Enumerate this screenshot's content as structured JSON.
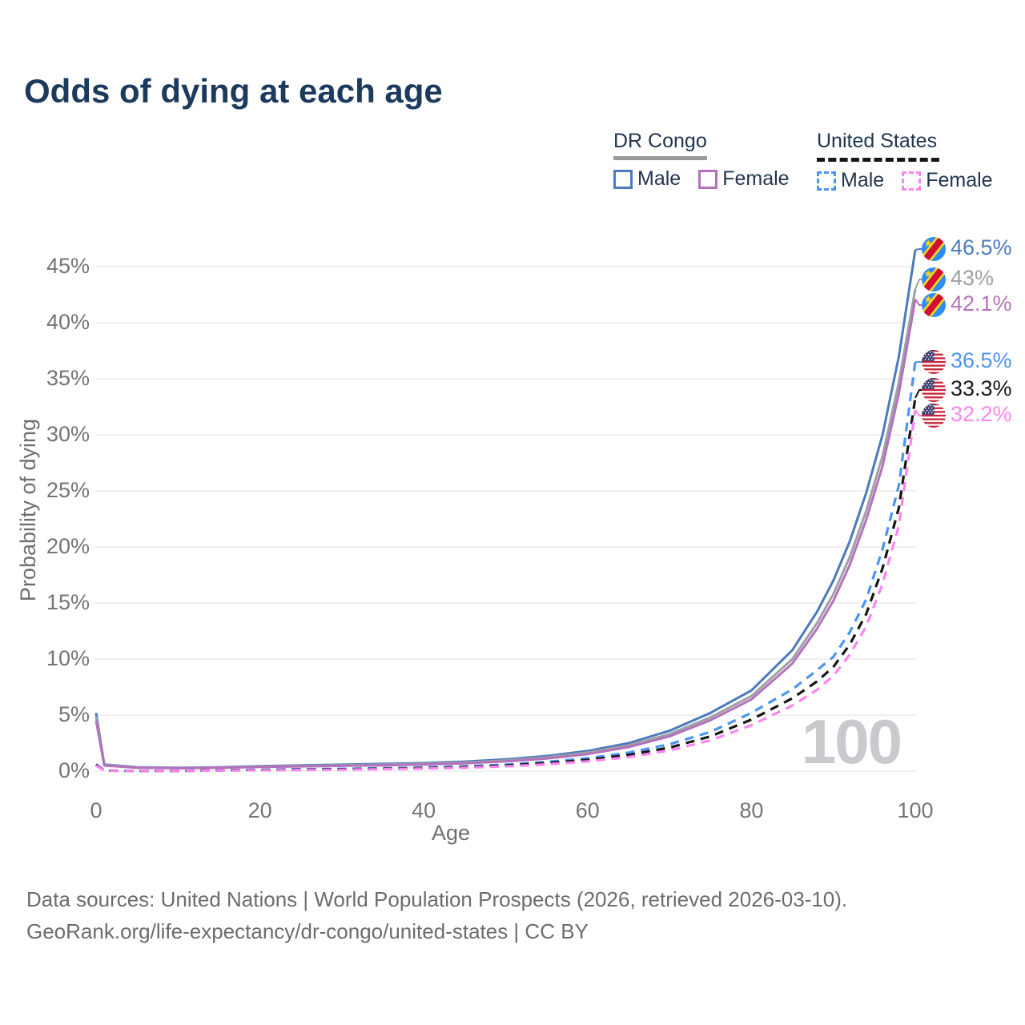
{
  "title": "Odds of dying at each age",
  "watermark": "100",
  "legend": {
    "dr_congo": {
      "label": "DR Congo",
      "male_label": "Male",
      "female_label": "Female"
    },
    "united_states": {
      "label": "United States",
      "male_label": "Male",
      "female_label": "Female"
    }
  },
  "colors": {
    "title_text": "#1c3a5e",
    "legend_text": "#20354f",
    "axis_text": "#757575",
    "gridline": "#ebebeb",
    "watermark": "#c9c9ce",
    "footer_text": "#6c6c6c",
    "dr_congo_male": "#4a7bbd",
    "dr_congo_both": "#9fa0a5",
    "dr_congo_female": "#b472bc",
    "us_male": "#4b94f4",
    "us_both": "#161616",
    "us_female": "#fc85ef"
  },
  "footer": {
    "line1": "Data sources: United Nations | World Population Prospects (2026, retrieved 2026-03-10).",
    "line2": "GeoRank.org/life-expectancy/dr-congo/united-states | CC BY"
  },
  "chart_data": {
    "type": "line",
    "title": "Odds of dying at each age",
    "xlabel": "Age",
    "ylabel": "Probability of dying",
    "x_ticks": [
      0,
      20,
      40,
      60,
      80,
      100
    ],
    "y_tick_labels": [
      "0%",
      "5%",
      "10%",
      "15%",
      "20%",
      "25%",
      "30%",
      "35%",
      "40%",
      "45%"
    ],
    "xlim": [
      0,
      100
    ],
    "ylim": [
      0,
      47.5
    ],
    "grid": "horizontal",
    "legend_position": "top-right",
    "ages": [
      0,
      1,
      5,
      10,
      15,
      20,
      25,
      30,
      35,
      40,
      45,
      50,
      55,
      60,
      65,
      70,
      75,
      80,
      85,
      88,
      90,
      92,
      94,
      96,
      98,
      100
    ],
    "series": [
      {
        "id": "dr-congo-male",
        "name": "DR Congo Male",
        "country": "DR Congo",
        "sex": "Male",
        "color": "#4a7bbd",
        "dashed": false,
        "flag": "dr-congo",
        "end_label": "46.5%",
        "end_value": 46.5,
        "values": [
          5.2,
          0.6,
          0.35,
          0.3,
          0.35,
          0.45,
          0.52,
          0.58,
          0.65,
          0.72,
          0.85,
          1.05,
          1.35,
          1.8,
          2.5,
          3.6,
          5.2,
          7.2,
          10.8,
          14.2,
          17.0,
          20.5,
          24.8,
          30.0,
          37.0,
          46.5
        ]
      },
      {
        "id": "dr-congo-both",
        "name": "DR Congo Both sexes",
        "country": "DR Congo",
        "sex": "Both",
        "color": "#9fa0a5",
        "dashed": false,
        "flag": "dr-congo",
        "end_label": "43%",
        "end_value": 43,
        "values": [
          4.85,
          0.55,
          0.32,
          0.28,
          0.32,
          0.41,
          0.47,
          0.52,
          0.58,
          0.65,
          0.77,
          0.95,
          1.22,
          1.65,
          2.3,
          3.3,
          4.8,
          6.7,
          10.0,
          13.2,
          15.8,
          19.1,
          23.2,
          28.1,
          34.7,
          43.0
        ]
      },
      {
        "id": "dr-congo-female",
        "name": "DR Congo Female",
        "country": "DR Congo",
        "sex": "Female",
        "color": "#b472bc",
        "dashed": false,
        "flag": "dr-congo",
        "end_label": "42.1%",
        "end_value": 42.1,
        "values": [
          4.5,
          0.5,
          0.3,
          0.26,
          0.3,
          0.37,
          0.42,
          0.47,
          0.52,
          0.59,
          0.7,
          0.87,
          1.12,
          1.52,
          2.15,
          3.1,
          4.55,
          6.4,
          9.6,
          12.7,
          15.2,
          18.4,
          22.4,
          27.2,
          33.7,
          42.1
        ]
      },
      {
        "id": "us-male",
        "name": "United States Male",
        "country": "United States",
        "sex": "Male",
        "color": "#4b94f4",
        "dashed": true,
        "flag": "united-states",
        "end_label": "36.5%",
        "end_value": 36.5,
        "values": [
          0.62,
          0.05,
          0.03,
          0.03,
          0.08,
          0.13,
          0.17,
          0.21,
          0.26,
          0.33,
          0.43,
          0.58,
          0.82,
          1.15,
          1.65,
          2.4,
          3.5,
          5.2,
          7.3,
          9.0,
          10.2,
          12.4,
          15.3,
          19.8,
          25.5,
          36.5
        ]
      },
      {
        "id": "us-both",
        "name": "United States Both sexes",
        "country": "United States",
        "sex": "Both",
        "color": "#161616",
        "dashed": true,
        "flag": "united-states",
        "end_label": "33.3%",
        "end_value": 33.3,
        "values": [
          0.56,
          0.05,
          0.02,
          0.02,
          0.06,
          0.1,
          0.13,
          0.17,
          0.21,
          0.28,
          0.37,
          0.51,
          0.72,
          1.0,
          1.45,
          2.1,
          3.1,
          4.6,
          6.5,
          8.0,
          9.3,
          11.3,
          14.0,
          18.1,
          23.5,
          33.3
        ]
      },
      {
        "id": "us-female",
        "name": "United States Female",
        "country": "United States",
        "sex": "Female",
        "color": "#fc85ef",
        "dashed": true,
        "flag": "united-states",
        "end_label": "32.2%",
        "end_value": 32.2,
        "values": [
          0.5,
          0.04,
          0.02,
          0.02,
          0.05,
          0.08,
          0.1,
          0.13,
          0.17,
          0.23,
          0.31,
          0.43,
          0.61,
          0.87,
          1.25,
          1.85,
          2.75,
          4.1,
          5.85,
          7.25,
          8.5,
          10.4,
          12.9,
          16.7,
          21.9,
          32.2
        ]
      }
    ]
  }
}
